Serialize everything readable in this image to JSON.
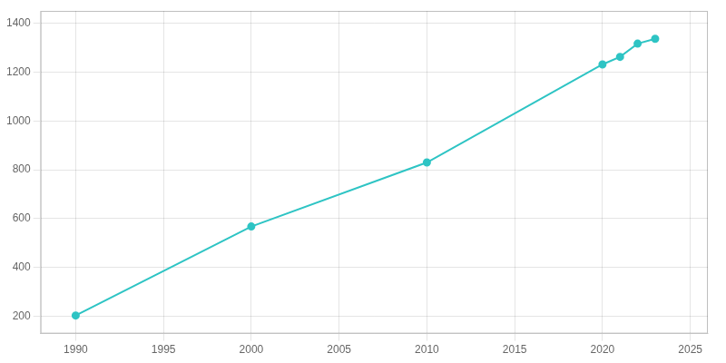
{
  "chart_data": {
    "type": "line",
    "x": [
      1990,
      2000,
      2010,
      2020,
      2021,
      2022,
      2023
    ],
    "values": [
      204,
      568,
      830,
      1231,
      1262,
      1316,
      1336
    ],
    "color": "#2ec4c4",
    "marker": "circle",
    "xlim": [
      1988,
      2026
    ],
    "ylim": [
      130,
      1450
    ],
    "xticks": [
      1990,
      1995,
      2000,
      2005,
      2010,
      2015,
      2020,
      2025
    ],
    "yticks": [
      200,
      400,
      600,
      800,
      1000,
      1200,
      1400
    ],
    "grid": true
  }
}
